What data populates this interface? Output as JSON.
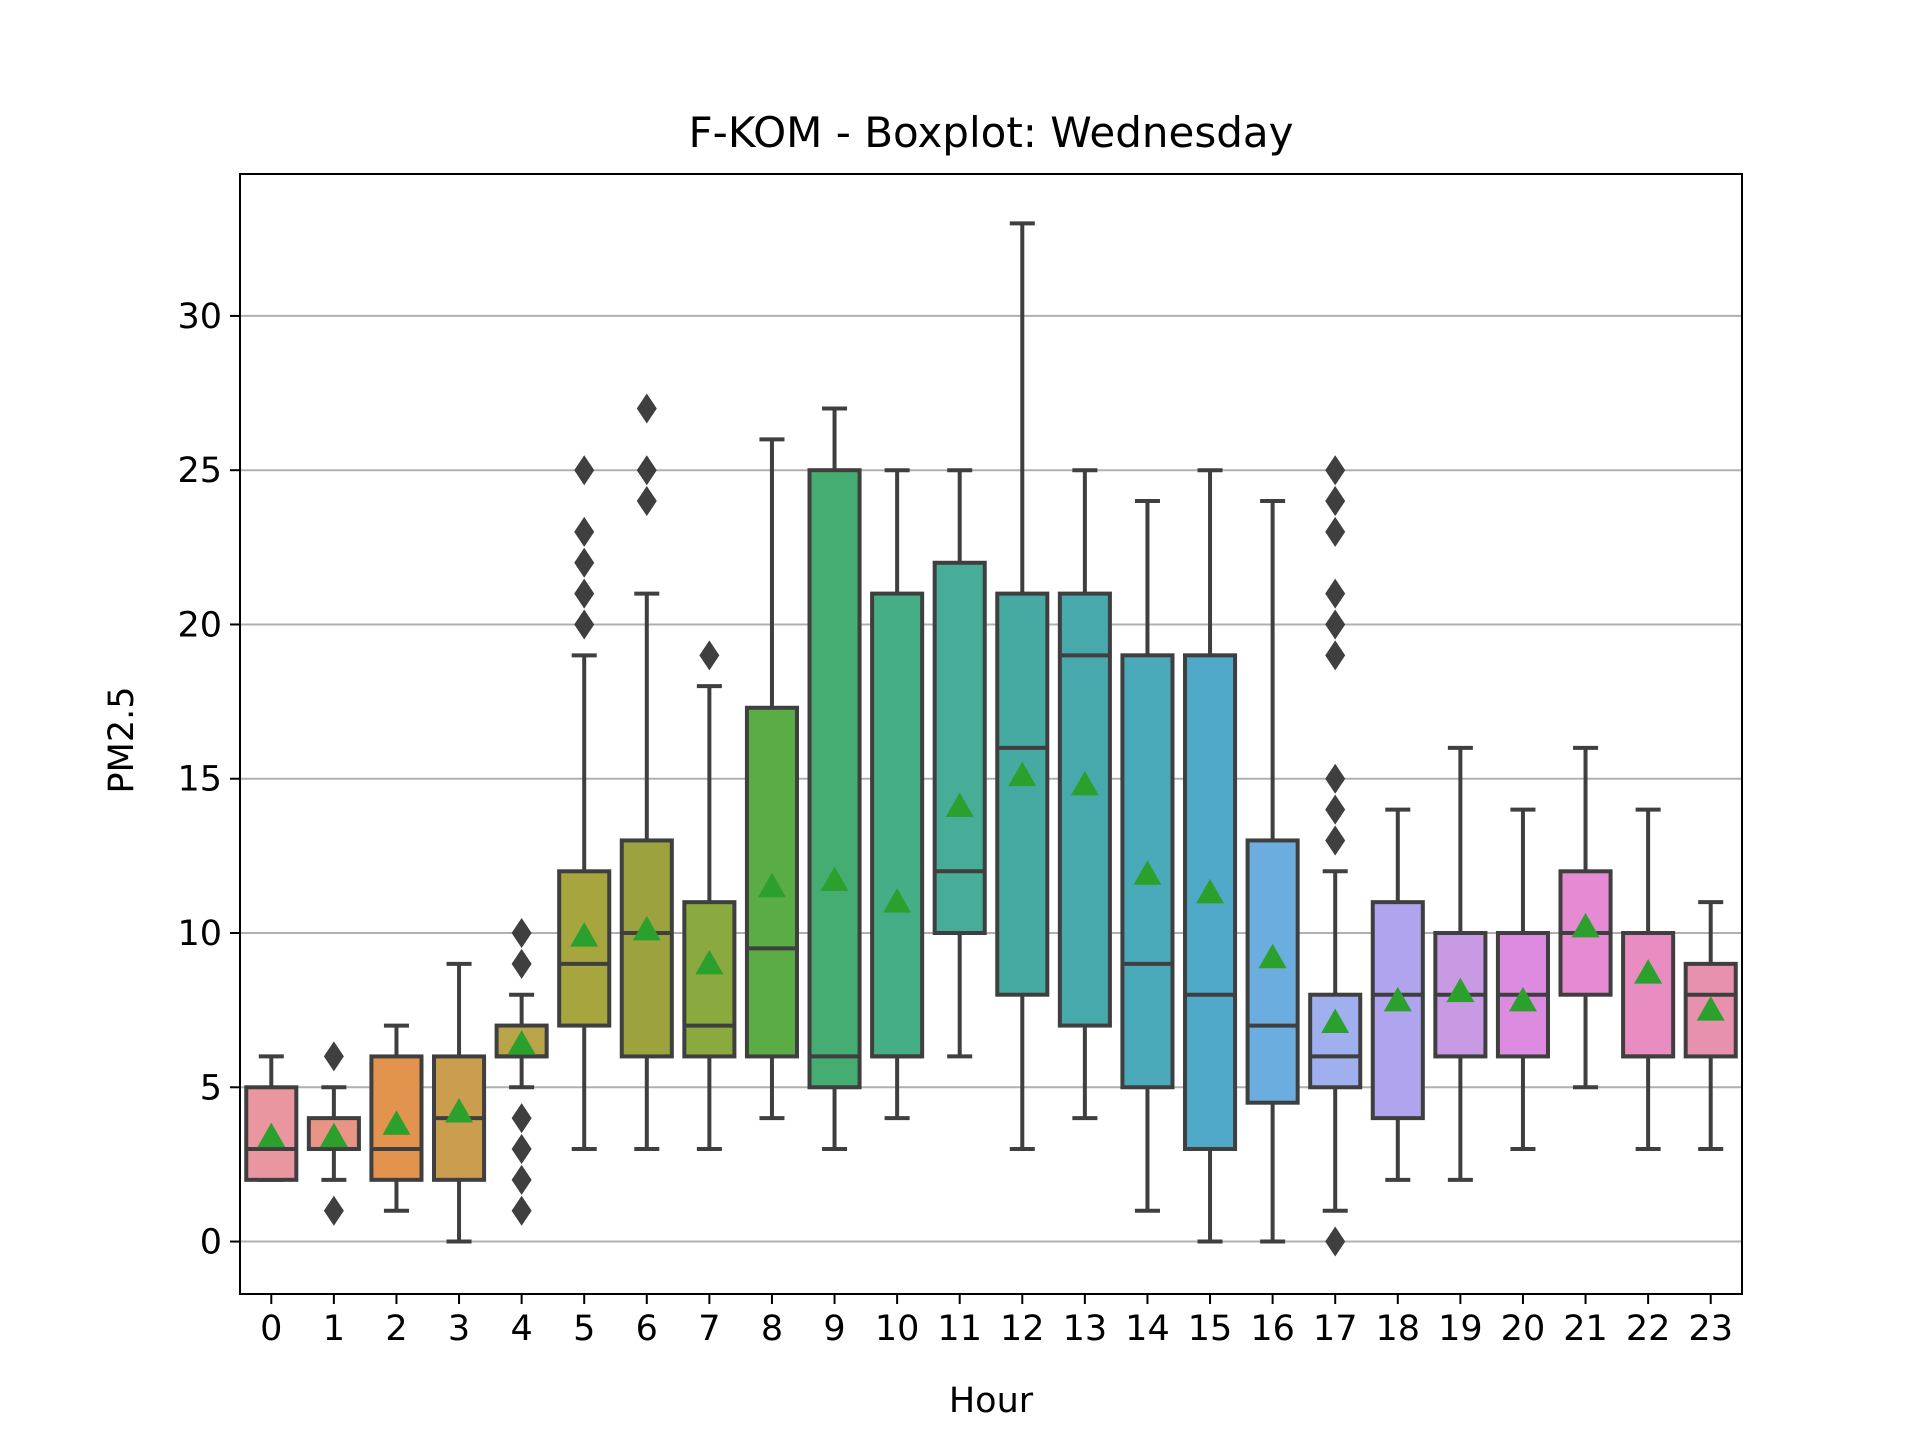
{
  "chart_data": {
    "type": "boxplot",
    "title": "F-KOM - Boxplot: Wednesday",
    "xlabel": "Hour",
    "ylabel": "PM2.5",
    "ylim": [
      -1.7,
      34.6
    ],
    "yticks": [
      "0",
      "5",
      "10",
      "15",
      "20",
      "25",
      "30"
    ],
    "grid": "horizontal",
    "legend": "none",
    "categories": [
      "0",
      "1",
      "2",
      "3",
      "4",
      "5",
      "6",
      "7",
      "8",
      "9",
      "10",
      "11",
      "12",
      "13",
      "14",
      "15",
      "16",
      "17",
      "18",
      "19",
      "20",
      "21",
      "22",
      "23"
    ],
    "colors": [
      "#ea96a0",
      "#e89486",
      "#e2934e",
      "#cb9d4f",
      "#b9a44a",
      "#a7a53e",
      "#9ca33e",
      "#8aa93e",
      "#5aad45",
      "#45ac72",
      "#46ae86",
      "#47ac98",
      "#47aaa2",
      "#48a9ad",
      "#4aaaba",
      "#50a9c9",
      "#6badde",
      "#a0b0ee",
      "#b1a4ee",
      "#c89ae4",
      "#dc8be0",
      "#e68ad3",
      "#e88cc2",
      "#e891ae"
    ],
    "boxes": [
      {
        "whislo": 2,
        "q1": 2,
        "med": 3,
        "q3": 5,
        "whishi": 6,
        "mean": 3.4,
        "fliers": []
      },
      {
        "whislo": 2,
        "q1": 3,
        "med": 3,
        "q3": 4,
        "whishi": 5,
        "mean": 3.4,
        "fliers": [
          1,
          6
        ]
      },
      {
        "whislo": 1,
        "q1": 2,
        "med": 3,
        "q3": 6,
        "whishi": 7,
        "mean": 3.8,
        "fliers": []
      },
      {
        "whislo": 0,
        "q1": 2,
        "med": 4,
        "q3": 6,
        "whishi": 9,
        "mean": 4.2,
        "fliers": []
      },
      {
        "whislo": 5,
        "q1": 6,
        "med": 6,
        "q3": 7,
        "whishi": 8,
        "mean": 6.4,
        "fliers": [
          1,
          2,
          3,
          4,
          9,
          10
        ]
      },
      {
        "whislo": 3,
        "q1": 7,
        "med": 9,
        "q3": 12,
        "whishi": 19,
        "mean": 9.9,
        "fliers": [
          20,
          21,
          22,
          23,
          25
        ]
      },
      {
        "whislo": 3,
        "q1": 6,
        "med": 10,
        "q3": 13,
        "whishi": 21,
        "mean": 10.1,
        "fliers": [
          24,
          25,
          27
        ]
      },
      {
        "whislo": 3,
        "q1": 6,
        "med": 7,
        "q3": 11,
        "whishi": 18,
        "mean": 9.0,
        "fliers": [
          19
        ]
      },
      {
        "whislo": 4,
        "q1": 6,
        "med": 9.5,
        "q3": 17.3,
        "whishi": 26,
        "mean": 11.5,
        "fliers": []
      },
      {
        "whislo": 3,
        "q1": 5,
        "med": 6,
        "q3": 25,
        "whishi": 27,
        "mean": 11.7,
        "fliers": []
      },
      {
        "whislo": 4,
        "q1": 6,
        "med": 6,
        "q3": 21,
        "whishi": 25,
        "mean": 11.0,
        "fliers": []
      },
      {
        "whislo": 6,
        "q1": 10,
        "med": 12,
        "q3": 22,
        "whishi": 25,
        "mean": 14.1,
        "fliers": []
      },
      {
        "whislo": 3,
        "q1": 8,
        "med": 16,
        "q3": 21,
        "whishi": 33,
        "mean": 15.1,
        "fliers": []
      },
      {
        "whislo": 4,
        "q1": 7,
        "med": 19,
        "q3": 21,
        "whishi": 25,
        "mean": 14.8,
        "fliers": []
      },
      {
        "whislo": 1,
        "q1": 5,
        "med": 9,
        "q3": 19,
        "whishi": 24,
        "mean": 11.9,
        "fliers": []
      },
      {
        "whislo": 0,
        "q1": 3,
        "med": 8,
        "q3": 19,
        "whishi": 25,
        "mean": 11.3,
        "fliers": []
      },
      {
        "whislo": 0,
        "q1": 4.5,
        "med": 7,
        "q3": 13,
        "whishi": 24,
        "mean": 9.2,
        "fliers": []
      },
      {
        "whislo": 1,
        "q1": 5,
        "med": 6,
        "q3": 8,
        "whishi": 12,
        "mean": 7.1,
        "fliers": [
          0,
          13,
          14,
          15,
          19,
          20,
          21,
          23,
          24,
          25
        ]
      },
      {
        "whislo": 2,
        "q1": 4,
        "med": 8,
        "q3": 11,
        "whishi": 14,
        "mean": 7.8,
        "fliers": []
      },
      {
        "whislo": 2,
        "q1": 6,
        "med": 8,
        "q3": 10,
        "whishi": 16,
        "mean": 8.1,
        "fliers": []
      },
      {
        "whislo": 3,
        "q1": 6,
        "med": 8,
        "q3": 10,
        "whishi": 14,
        "mean": 7.8,
        "fliers": []
      },
      {
        "whislo": 5,
        "q1": 8,
        "med": 10,
        "q3": 12,
        "whishi": 16,
        "mean": 10.2,
        "fliers": []
      },
      {
        "whislo": 3,
        "q1": 6,
        "med": 6,
        "q3": 10,
        "whishi": 14,
        "mean": 8.7,
        "fliers": []
      },
      {
        "whislo": 3,
        "q1": 6,
        "med": 8,
        "q3": 9,
        "whishi": 11,
        "mean": 7.5,
        "fliers": []
      }
    ]
  }
}
